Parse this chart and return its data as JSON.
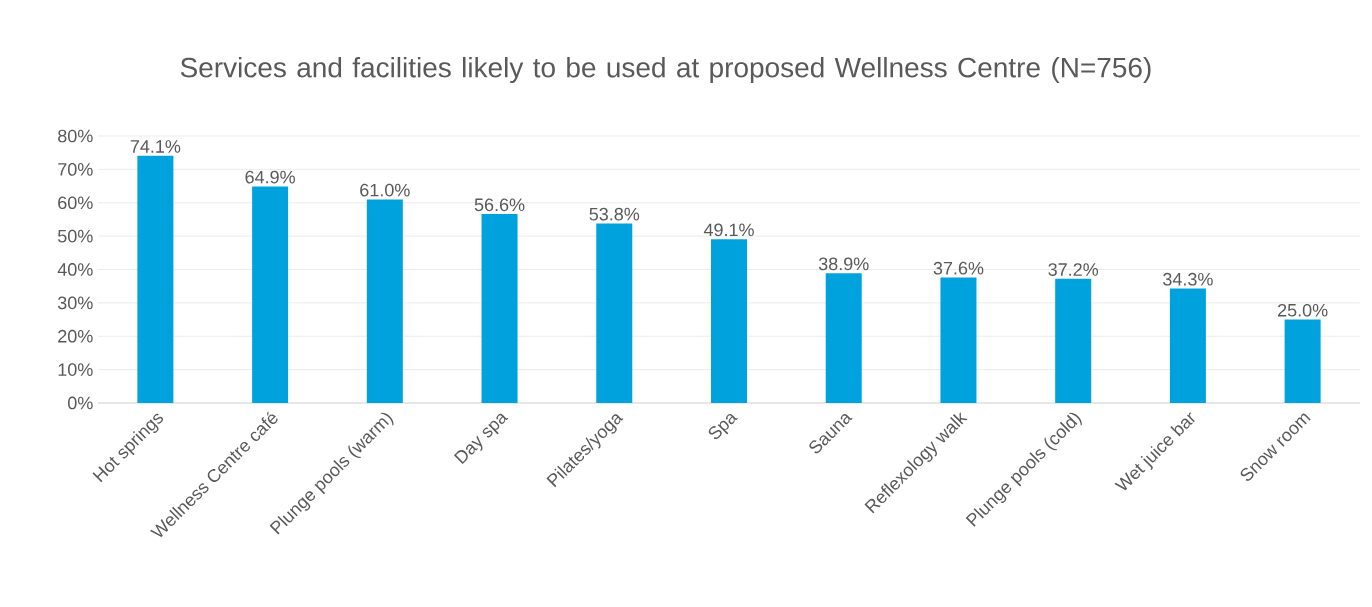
{
  "chart_data": {
    "type": "bar",
    "title": "Services and facilities likely to be used at proposed Wellness Centre (N=756)",
    "categories": [
      "Hot springs",
      "Wellness Centre café",
      "Plunge pools (warm)",
      "Day spa",
      "Pilates/yoga",
      "Spa",
      "Sauna",
      "Reflexology walk",
      "Plunge pools (cold)",
      "Wet juice bar",
      "Snow room"
    ],
    "values": [
      74.1,
      64.9,
      61.0,
      56.6,
      53.8,
      49.1,
      38.9,
      37.6,
      37.2,
      34.3,
      25.0
    ],
    "value_labels": [
      "74.1%",
      "64.9%",
      "61.0%",
      "56.6%",
      "53.8%",
      "49.1%",
      "38.9%",
      "37.6%",
      "37.2%",
      "34.3%",
      "25.0%"
    ],
    "color": "#00a2de",
    "ylim": [
      0,
      80
    ],
    "yticks": [
      {
        "value": 0,
        "label": "0%"
      },
      {
        "value": 10,
        "label": "10%"
      },
      {
        "value": 20,
        "label": "20%"
      },
      {
        "value": 30,
        "label": "30%"
      },
      {
        "value": 40,
        "label": "40%"
      },
      {
        "value": 50,
        "label": "50%"
      },
      {
        "value": 60,
        "label": "60%"
      },
      {
        "value": 70,
        "label": "70%"
      },
      {
        "value": 80,
        "label": "80%"
      }
    ],
    "grid": "y"
  }
}
